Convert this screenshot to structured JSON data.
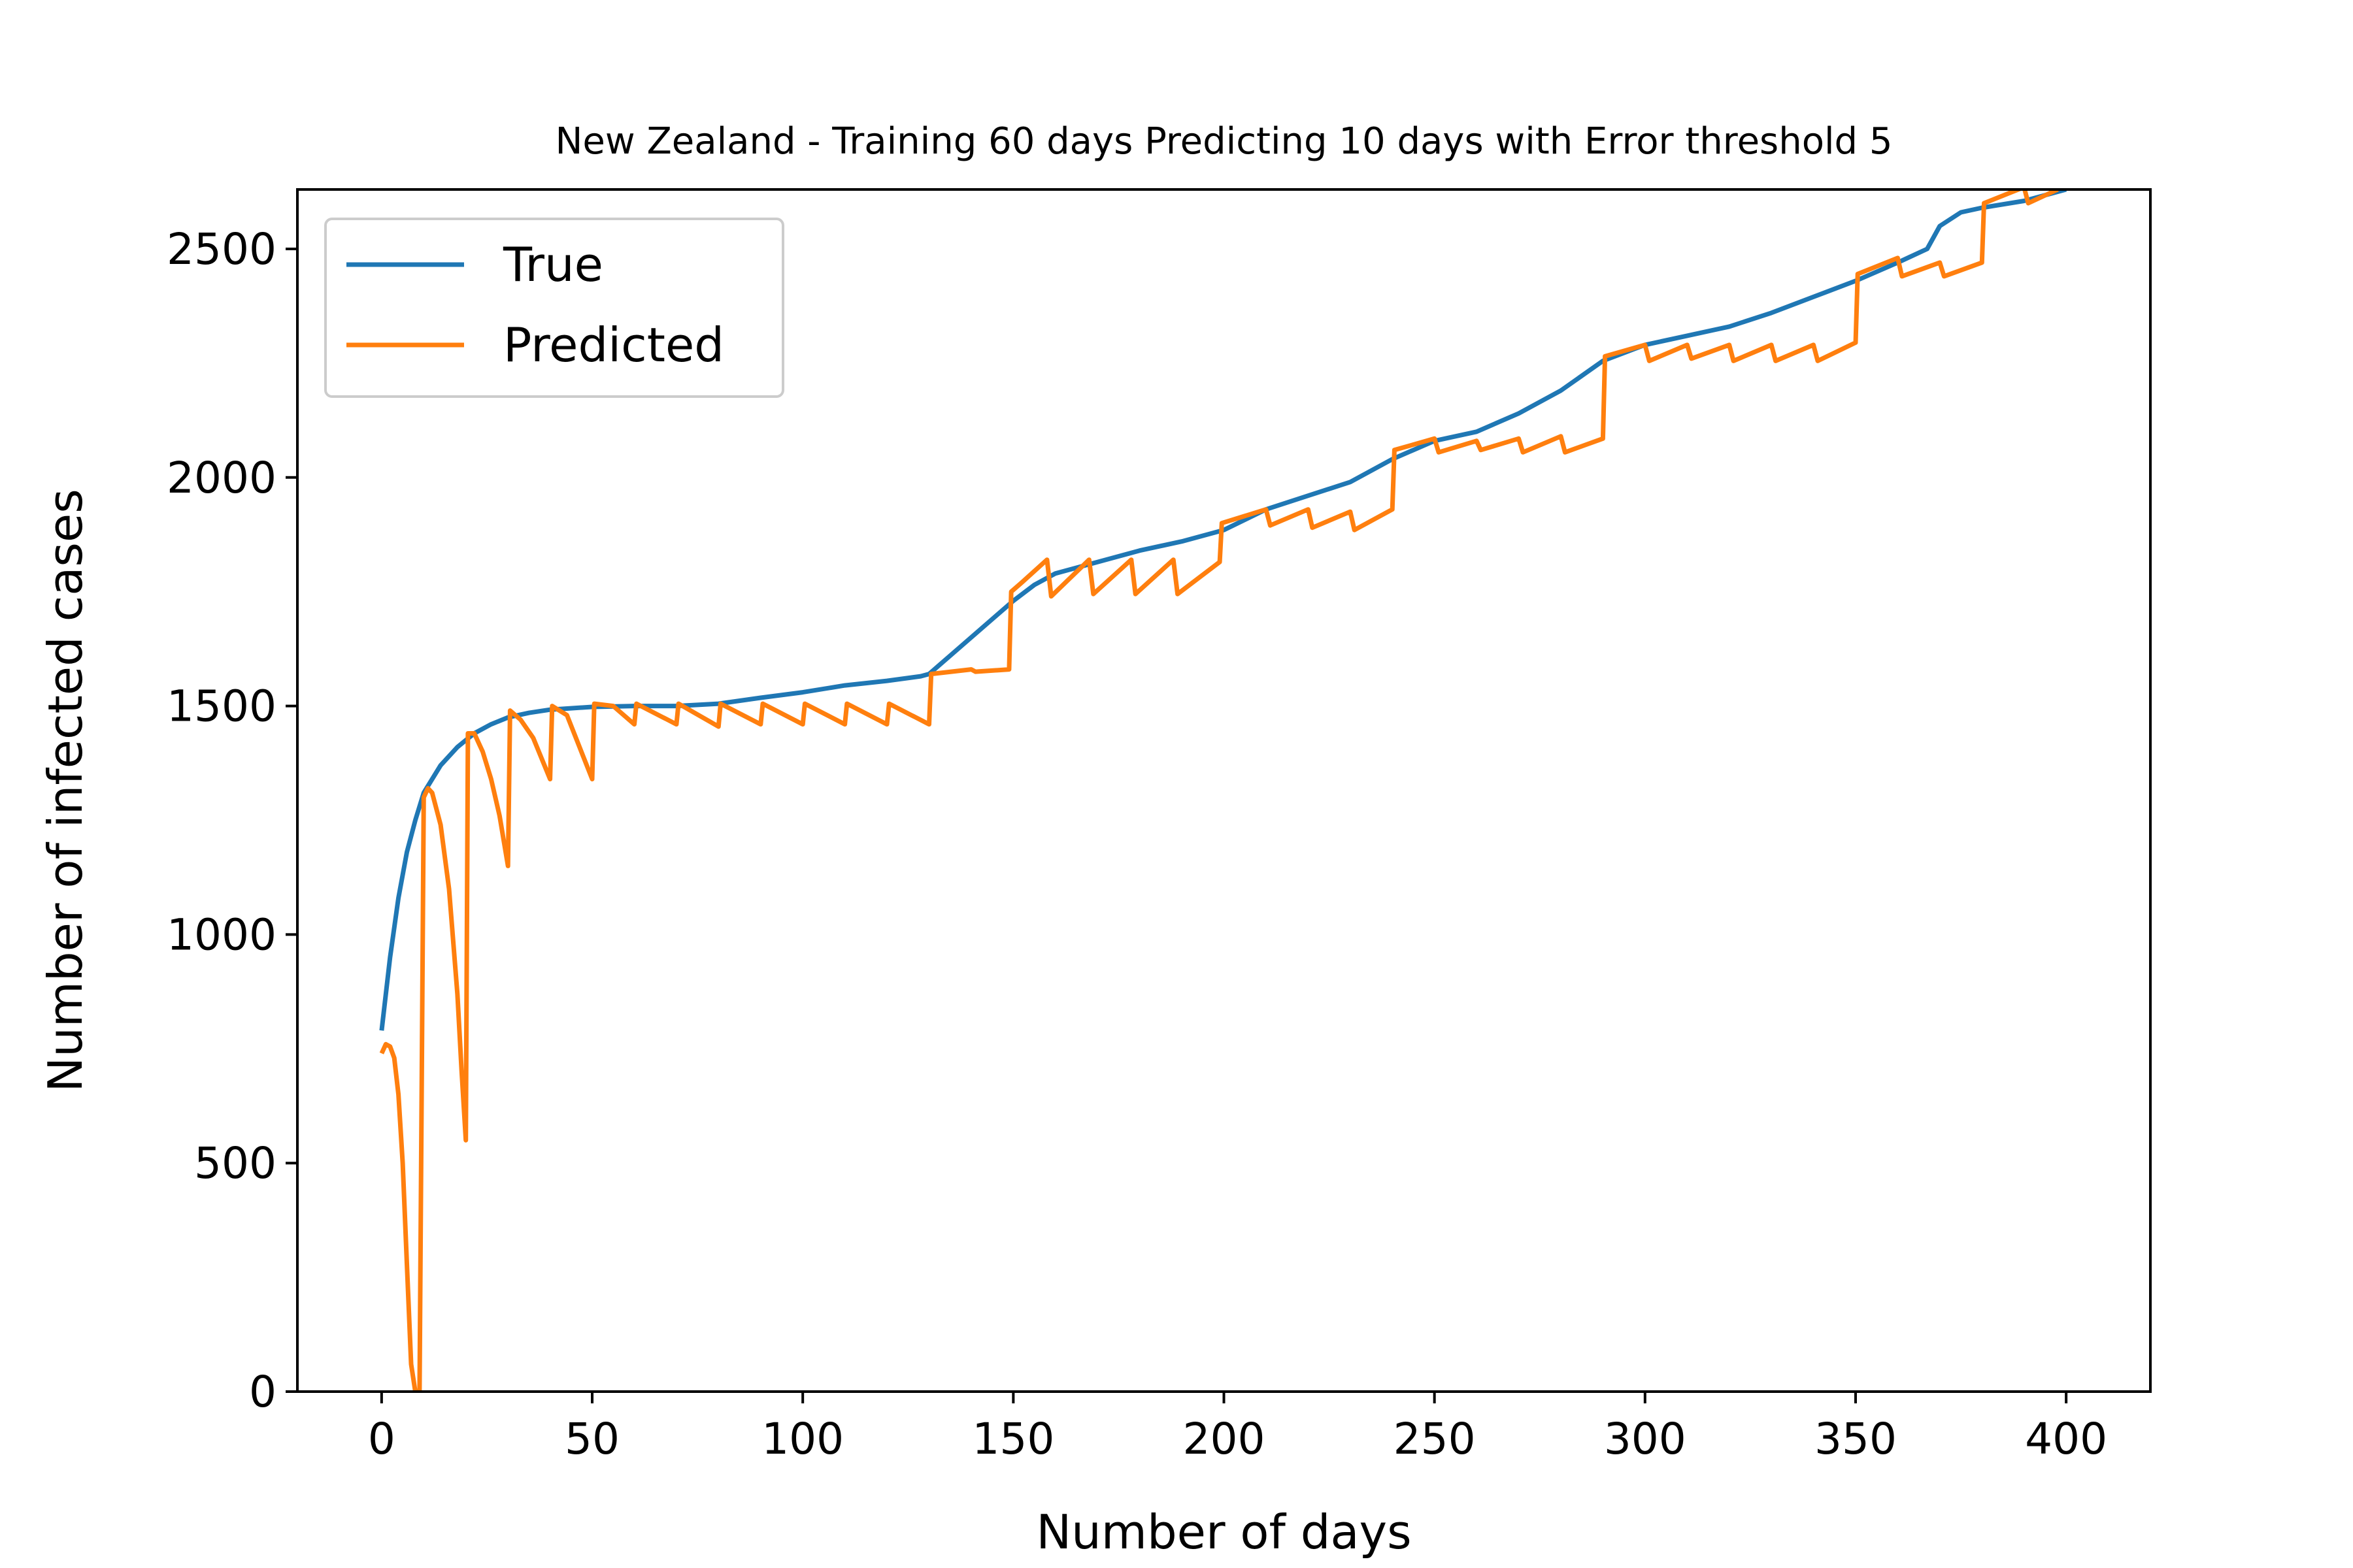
{
  "chart_data": {
    "type": "line",
    "title": "New Zealand - Training 60 days Predicting 10 days with Error threshold 5",
    "xlabel": "Number of days",
    "ylabel": "Number of infected cases",
    "xlim": [
      -20,
      420
    ],
    "ylim": [
      0,
      2630
    ],
    "xticks": [
      0,
      50,
      100,
      150,
      200,
      250,
      300,
      350,
      400
    ],
    "yticks": [
      0,
      500,
      1000,
      1500,
      2000,
      2500
    ],
    "grid": false,
    "legend_position": "top-left",
    "series": [
      {
        "name": "True",
        "color": "#1f77b4",
        "points": [
          [
            0,
            790
          ],
          [
            2,
            950
          ],
          [
            4,
            1080
          ],
          [
            6,
            1180
          ],
          [
            8,
            1250
          ],
          [
            10,
            1310
          ],
          [
            14,
            1370
          ],
          [
            18,
            1410
          ],
          [
            22,
            1440
          ],
          [
            26,
            1460
          ],
          [
            30,
            1475
          ],
          [
            35,
            1485
          ],
          [
            40,
            1492
          ],
          [
            50,
            1498
          ],
          [
            60,
            1500
          ],
          [
            70,
            1500
          ],
          [
            80,
            1505
          ],
          [
            90,
            1518
          ],
          [
            100,
            1530
          ],
          [
            110,
            1545
          ],
          [
            120,
            1555
          ],
          [
            128,
            1565
          ],
          [
            130,
            1570
          ],
          [
            135,
            1610
          ],
          [
            140,
            1650
          ],
          [
            145,
            1690
          ],
          [
            150,
            1730
          ],
          [
            155,
            1765
          ],
          [
            160,
            1790
          ],
          [
            170,
            1815
          ],
          [
            180,
            1840
          ],
          [
            190,
            1860
          ],
          [
            200,
            1885
          ],
          [
            210,
            1930
          ],
          [
            220,
            1960
          ],
          [
            230,
            1990
          ],
          [
            240,
            2040
          ],
          [
            250,
            2080
          ],
          [
            260,
            2100
          ],
          [
            270,
            2140
          ],
          [
            280,
            2190
          ],
          [
            290,
            2255
          ],
          [
            300,
            2290
          ],
          [
            310,
            2310
          ],
          [
            320,
            2330
          ],
          [
            330,
            2360
          ],
          [
            340,
            2395
          ],
          [
            350,
            2430
          ],
          [
            360,
            2470
          ],
          [
            367,
            2500
          ],
          [
            370,
            2550
          ],
          [
            375,
            2580
          ],
          [
            380,
            2590
          ],
          [
            390,
            2605
          ],
          [
            400,
            2630
          ]
        ]
      },
      {
        "name": "Predicted",
        "color": "#ff7f0e",
        "points": [
          [
            0,
            740
          ],
          [
            1,
            760
          ],
          [
            2,
            755
          ],
          [
            3,
            730
          ],
          [
            4,
            650
          ],
          [
            5,
            500
          ],
          [
            6,
            280
          ],
          [
            7,
            60
          ],
          [
            8,
            0
          ],
          [
            9,
            0
          ],
          [
            10,
            1300
          ],
          [
            11,
            1320
          ],
          [
            12,
            1310
          ],
          [
            14,
            1240
          ],
          [
            16,
            1100
          ],
          [
            18,
            870
          ],
          [
            19,
            700
          ],
          [
            20,
            550
          ],
          [
            20.5,
            1440
          ],
          [
            22,
            1440
          ],
          [
            24,
            1400
          ],
          [
            26,
            1340
          ],
          [
            28,
            1260
          ],
          [
            30,
            1150
          ],
          [
            30.5,
            1490
          ],
          [
            33,
            1470
          ],
          [
            36,
            1430
          ],
          [
            40,
            1340
          ],
          [
            40.5,
            1500
          ],
          [
            44,
            1480
          ],
          [
            50,
            1340
          ],
          [
            50.5,
            1505
          ],
          [
            55,
            1500
          ],
          [
            60,
            1460
          ],
          [
            60.5,
            1505
          ],
          [
            70,
            1460
          ],
          [
            70.5,
            1505
          ],
          [
            80,
            1455
          ],
          [
            80.5,
            1505
          ],
          [
            90,
            1460
          ],
          [
            90.5,
            1505
          ],
          [
            100,
            1460
          ],
          [
            100.5,
            1505
          ],
          [
            110,
            1460
          ],
          [
            110.5,
            1505
          ],
          [
            120,
            1460
          ],
          [
            120.5,
            1505
          ],
          [
            130,
            1460
          ],
          [
            130.5,
            1570
          ],
          [
            140,
            1580
          ],
          [
            141,
            1575
          ],
          [
            149,
            1580
          ],
          [
            149.5,
            1750
          ],
          [
            152,
            1770
          ],
          [
            158,
            1820
          ],
          [
            159,
            1740
          ],
          [
            168,
            1820
          ],
          [
            169,
            1745
          ],
          [
            178,
            1820
          ],
          [
            179,
            1745
          ],
          [
            188,
            1820
          ],
          [
            189,
            1745
          ],
          [
            199,
            1815
          ],
          [
            199.5,
            1900
          ],
          [
            210,
            1930
          ],
          [
            211,
            1895
          ],
          [
            220,
            1930
          ],
          [
            221,
            1890
          ],
          [
            230,
            1925
          ],
          [
            231,
            1885
          ],
          [
            240,
            1930
          ],
          [
            240.5,
            2060
          ],
          [
            250,
            2085
          ],
          [
            251,
            2055
          ],
          [
            260,
            2080
          ],
          [
            261,
            2060
          ],
          [
            270,
            2085
          ],
          [
            271,
            2055
          ],
          [
            280,
            2090
          ],
          [
            281,
            2055
          ],
          [
            290,
            2085
          ],
          [
            290.5,
            2265
          ],
          [
            300,
            2290
          ],
          [
            301,
            2255
          ],
          [
            310,
            2290
          ],
          [
            311,
            2260
          ],
          [
            320,
            2290
          ],
          [
            321,
            2255
          ],
          [
            330,
            2290
          ],
          [
            331,
            2255
          ],
          [
            340,
            2290
          ],
          [
            341,
            2255
          ],
          [
            350,
            2295
          ],
          [
            350.5,
            2445
          ],
          [
            360,
            2480
          ],
          [
            361,
            2440
          ],
          [
            370,
            2470
          ],
          [
            371,
            2440
          ],
          [
            380,
            2470
          ],
          [
            380.5,
            2600
          ],
          [
            390,
            2635
          ],
          [
            391,
            2600
          ],
          [
            398,
            2630
          ]
        ]
      }
    ]
  }
}
